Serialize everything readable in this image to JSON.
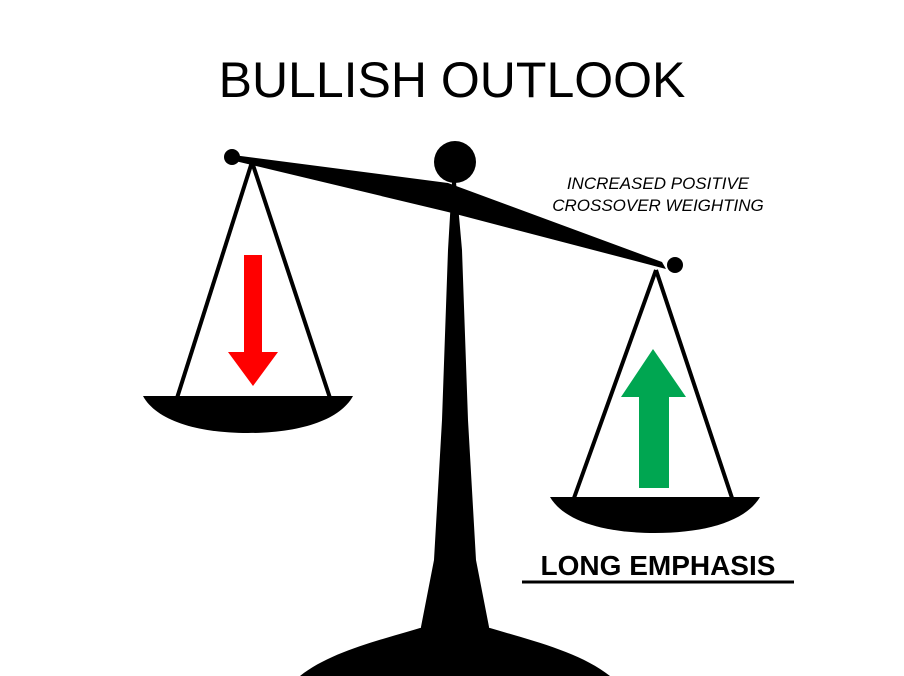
{
  "title": "BULLISH OUTLOOK",
  "annotation": {
    "line1": "INCREASED POSITIVE",
    "line2": "CROSSOVER WEIGHTING"
  },
  "emphasis_label": "LONG EMPHASIS",
  "colors": {
    "scale": "#000000",
    "down_arrow": "#ff0000",
    "up_arrow": "#00a651",
    "background": "#ffffff"
  },
  "icons": {
    "left_pan": "red-down-arrow-icon",
    "right_pan": "green-up-arrow-icon"
  }
}
